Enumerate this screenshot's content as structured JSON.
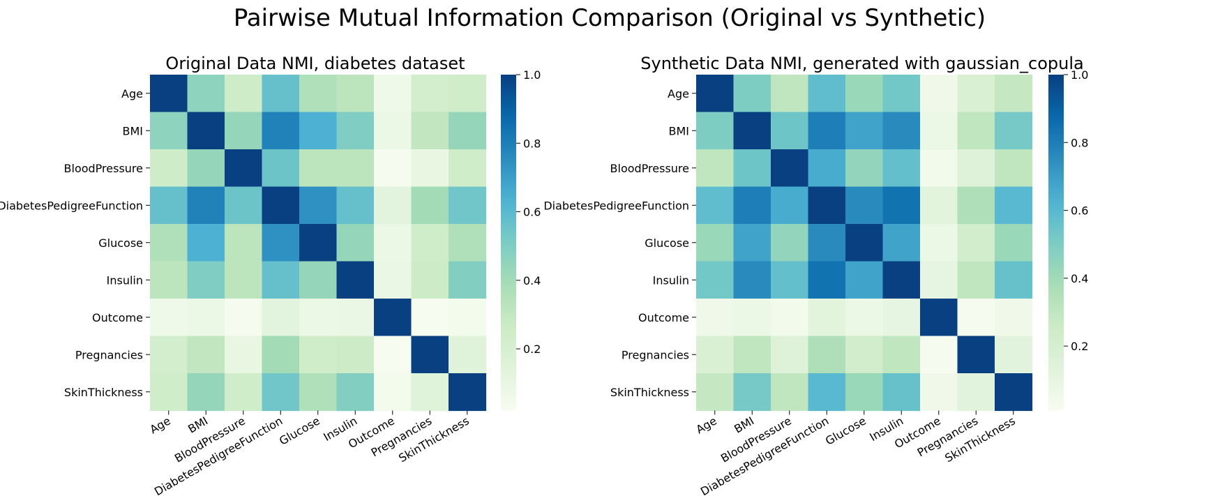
{
  "figure": {
    "title": "Pairwise Mutual Information Comparison (Original vs Synthetic)",
    "colormap": "YlGnBu",
    "colormap_stops": [
      "#f7fcf0",
      "#e0f3db",
      "#ccebc5",
      "#a8ddb5",
      "#7bccc4",
      "#4eb3d3",
      "#2b8cbe",
      "#0868ac",
      "#084081"
    ]
  },
  "chart_data": [
    {
      "type": "heatmap",
      "title": "Original Data NMI, diabetes dataset",
      "rows": [
        "Age",
        "BMI",
        "BloodPressure",
        "DiabetesPedigreeFunction",
        "Glucose",
        "Insulin",
        "Outcome",
        "Pregnancies",
        "SkinThickness"
      ],
      "cols": [
        "Age",
        "BMI",
        "BloodPressure",
        "DiabetesPedigreeFunction",
        "Glucose",
        "Insulin",
        "Outcome",
        "Pregnancies",
        "SkinThickness"
      ],
      "values": [
        [
          1.0,
          0.46,
          0.25,
          0.57,
          0.36,
          0.32,
          0.06,
          0.22,
          0.24
        ],
        [
          0.46,
          1.0,
          0.44,
          0.79,
          0.64,
          0.5,
          0.08,
          0.3,
          0.44
        ],
        [
          0.25,
          0.44,
          1.0,
          0.55,
          0.32,
          0.32,
          0.03,
          0.1,
          0.24
        ],
        [
          0.57,
          0.79,
          0.55,
          1.0,
          0.74,
          0.57,
          0.13,
          0.4,
          0.54
        ],
        [
          0.36,
          0.64,
          0.32,
          0.74,
          1.0,
          0.44,
          0.08,
          0.24,
          0.36
        ],
        [
          0.32,
          0.5,
          0.32,
          0.57,
          0.44,
          1.0,
          0.09,
          0.26,
          0.49
        ],
        [
          0.06,
          0.08,
          0.03,
          0.13,
          0.08,
          0.09,
          1.0,
          0.02,
          0.04
        ],
        [
          0.22,
          0.3,
          0.1,
          0.4,
          0.24,
          0.26,
          0.02,
          1.0,
          0.15
        ],
        [
          0.24,
          0.44,
          0.24,
          0.54,
          0.36,
          0.49,
          0.04,
          0.15,
          1.0
        ]
      ],
      "colorbar": {
        "range": [
          0.02,
          1.0
        ],
        "ticks": [
          0.2,
          0.4,
          0.6,
          0.8,
          1.0
        ],
        "tick_labels": [
          "0.2",
          "0.4",
          "0.6",
          "0.8",
          "1.0"
        ]
      }
    },
    {
      "type": "heatmap",
      "title": "Synthetic Data NMI, generated with gaussian_copula",
      "rows": [
        "Age",
        "BMI",
        "BloodPressure",
        "DiabetesPedigreeFunction",
        "Glucose",
        "Insulin",
        "Outcome",
        "Pregnancies",
        "SkinThickness"
      ],
      "cols": [
        "Age",
        "BMI",
        "BloodPressure",
        "DiabetesPedigreeFunction",
        "Glucose",
        "Insulin",
        "Outcome",
        "Pregnancies",
        "SkinThickness"
      ],
      "values": [
        [
          1.0,
          0.5,
          0.3,
          0.58,
          0.42,
          0.53,
          0.05,
          0.18,
          0.28
        ],
        [
          0.5,
          1.0,
          0.54,
          0.8,
          0.68,
          0.76,
          0.07,
          0.3,
          0.52
        ],
        [
          0.3,
          0.54,
          1.0,
          0.65,
          0.44,
          0.57,
          0.04,
          0.15,
          0.3
        ],
        [
          0.58,
          0.8,
          0.65,
          1.0,
          0.76,
          0.84,
          0.12,
          0.36,
          0.6
        ],
        [
          0.42,
          0.68,
          0.44,
          0.76,
          1.0,
          0.68,
          0.07,
          0.22,
          0.42
        ],
        [
          0.53,
          0.76,
          0.57,
          0.84,
          0.68,
          1.0,
          0.1,
          0.3,
          0.56
        ],
        [
          0.05,
          0.07,
          0.04,
          0.12,
          0.07,
          0.1,
          1.0,
          0.02,
          0.05
        ],
        [
          0.18,
          0.3,
          0.15,
          0.36,
          0.22,
          0.3,
          0.02,
          1.0,
          0.13
        ],
        [
          0.28,
          0.52,
          0.3,
          0.6,
          0.42,
          0.56,
          0.05,
          0.13,
          1.0
        ]
      ],
      "colorbar": {
        "range": [
          0.01,
          1.0
        ],
        "ticks": [
          0.2,
          0.4,
          0.6,
          0.8,
          1.0
        ],
        "tick_labels": [
          "0.2",
          "0.4",
          "0.6",
          "0.8",
          "1.0"
        ]
      }
    }
  ]
}
